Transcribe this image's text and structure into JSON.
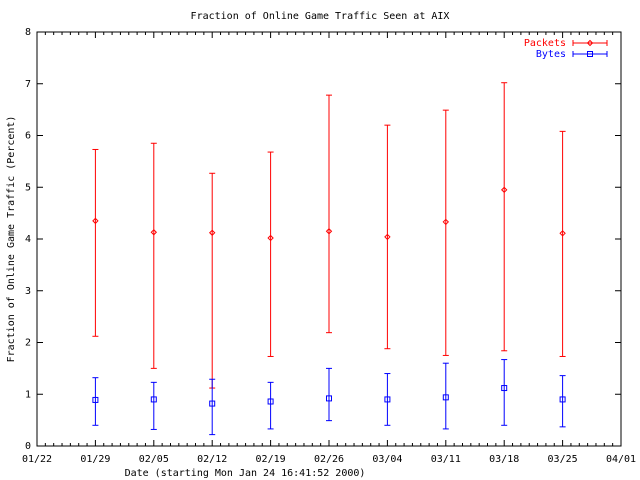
{
  "chart_data": {
    "type": "scatter",
    "title": "Fraction of Online Game Traffic Seen at AIX",
    "xlabel": "Date (starting Mon Jan 24 16:41:52 2000)",
    "ylabel": "Fraction of Online Game Traffic (Percent)",
    "x_tick_labels": [
      "01/22",
      "01/29",
      "02/05",
      "02/12",
      "02/19",
      "02/26",
      "03/04",
      "03/11",
      "03/18",
      "03/25",
      "04/01"
    ],
    "y_tick_labels": [
      "0",
      "1",
      "2",
      "3",
      "4",
      "5",
      "6",
      "7",
      "8"
    ],
    "ylim": [
      0,
      8
    ],
    "grid": false,
    "legend_position": "top-right",
    "series": [
      {
        "name": "Packets",
        "color": "#ff0000",
        "marker": "diamond",
        "points": [
          {
            "x": "01/29",
            "y": 4.35,
            "low": 2.12,
            "high": 5.73
          },
          {
            "x": "02/05",
            "y": 4.13,
            "low": 1.5,
            "high": 5.85
          },
          {
            "x": "02/12",
            "y": 4.12,
            "low": 1.12,
            "high": 5.27
          },
          {
            "x": "02/19",
            "y": 4.02,
            "low": 1.73,
            "high": 5.68
          },
          {
            "x": "02/26",
            "y": 4.15,
            "low": 2.19,
            "high": 6.78
          },
          {
            "x": "03/04",
            "y": 4.04,
            "low": 1.88,
            "high": 6.2
          },
          {
            "x": "03/11",
            "y": 4.33,
            "low": 1.75,
            "high": 6.49
          },
          {
            "x": "03/18",
            "y": 4.95,
            "low": 1.84,
            "high": 7.02
          },
          {
            "x": "03/25",
            "y": 4.11,
            "low": 1.73,
            "high": 6.08
          }
        ]
      },
      {
        "name": "Bytes",
        "color": "#0000ff",
        "marker": "square",
        "points": [
          {
            "x": "01/29",
            "y": 0.89,
            "low": 0.4,
            "high": 1.32
          },
          {
            "x": "02/05",
            "y": 0.9,
            "low": 0.32,
            "high": 1.23
          },
          {
            "x": "02/12",
            "y": 0.82,
            "low": 0.22,
            "high": 1.29
          },
          {
            "x": "02/19",
            "y": 0.86,
            "low": 0.33,
            "high": 1.23
          },
          {
            "x": "02/26",
            "y": 0.92,
            "low": 0.49,
            "high": 1.5
          },
          {
            "x": "03/04",
            "y": 0.9,
            "low": 0.4,
            "high": 1.4
          },
          {
            "x": "03/11",
            "y": 0.94,
            "low": 0.33,
            "high": 1.6
          },
          {
            "x": "03/18",
            "y": 1.12,
            "low": 0.4,
            "high": 1.67
          },
          {
            "x": "03/25",
            "y": 0.9,
            "low": 0.37,
            "high": 1.36
          }
        ]
      }
    ]
  }
}
